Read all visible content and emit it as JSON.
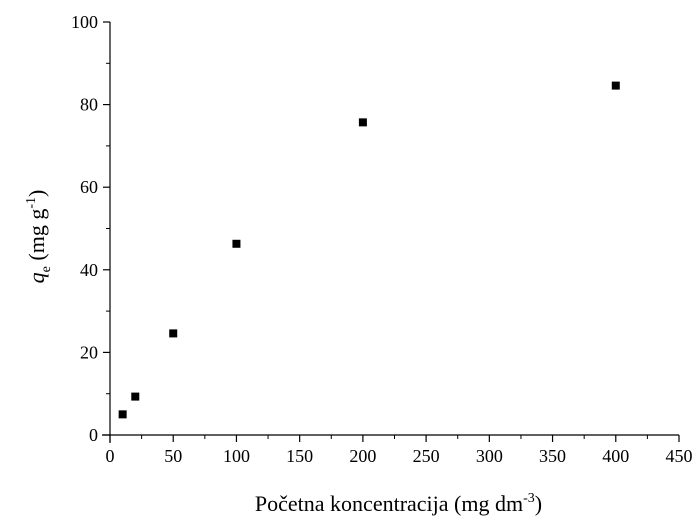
{
  "chart_data": {
    "type": "scatter",
    "xlabel": "Početna koncentracija (mg dm",
    "xlabel_sup": "-3",
    "xlabel_end": ")",
    "ylabel_symbol": "q",
    "ylabel_sub": "e",
    "ylabel_text": " (mg g",
    "ylabel_sup": "-1",
    "ylabel_end": ")",
    "xlim": [
      0,
      450
    ],
    "ylim": [
      0,
      100
    ],
    "xticks": [
      "0",
      "50",
      "100",
      "150",
      "200",
      "250",
      "300",
      "350",
      "400",
      "450"
    ],
    "yticks": [
      "0",
      "20",
      "40",
      "60",
      "80",
      "100"
    ],
    "marker": "square",
    "marker_color": "#000000",
    "grid": false,
    "series": [
      {
        "x": [
          10,
          20,
          50,
          100,
          200,
          400
        ],
        "y": [
          5.0,
          9.3,
          24.6,
          46.3,
          75.7,
          84.6
        ]
      }
    ]
  }
}
